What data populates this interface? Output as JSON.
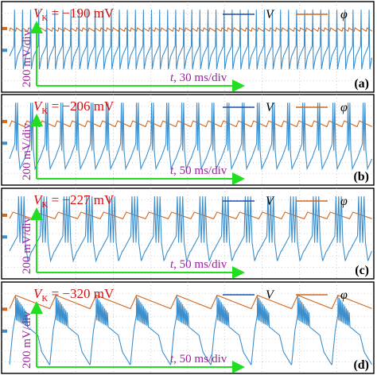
{
  "chart_data": [
    {
      "type": "line",
      "panel_label": "(a)",
      "vk_symbol": "V",
      "vk_subscript": "K",
      "vk_value": " = −190 mV",
      "x_annotation": "t, 30 ms/div",
      "y_annotation": "200 mV/div",
      "legend": [
        "V",
        "φ"
      ],
      "series": [
        {
          "name": "V",
          "color": "#3d8fcc",
          "pattern": "regular spiking",
          "spike_count": 45
        },
        {
          "name": "φ",
          "color": "#d2691e",
          "pattern": "small ripple near top"
        }
      ]
    },
    {
      "type": "line",
      "panel_label": "(b)",
      "vk_symbol": "V",
      "vk_subscript": "K",
      "vk_value": " = −206 mV",
      "x_annotation": "t, 50 ms/div",
      "y_annotation": "200 mV/div",
      "legend": [
        "V",
        "φ"
      ],
      "series": [
        {
          "name": "V",
          "color": "#3d8fcc",
          "pattern": "doublet bursting",
          "burst_count": 24
        },
        {
          "name": "φ",
          "color": "#d2691e",
          "pattern": "sawtooth ripple"
        }
      ]
    },
    {
      "type": "line",
      "panel_label": "(c)",
      "vk_symbol": "V",
      "vk_subscript": "K",
      "vk_value": " = −227 mV",
      "x_annotation": "t, 50 ms/div",
      "y_annotation": "200 mV/div",
      "legend": [
        "V",
        "φ"
      ],
      "series": [
        {
          "name": "V",
          "color": "#3d8fcc",
          "pattern": "triplet bursting",
          "burst_count": 16
        },
        {
          "name": "φ",
          "color": "#d2691e",
          "pattern": "sawtooth ripple"
        }
      ]
    },
    {
      "type": "line",
      "panel_label": "(d)",
      "vk_symbol": "V",
      "vk_subscript": "K",
      "vk_value": " = −320 mV",
      "x_annotation": "t, 50 ms/div",
      "y_annotation": "200 mV/div",
      "legend": [
        "V",
        "φ"
      ],
      "series": [
        {
          "name": "V",
          "color": "#3d8fcc",
          "pattern": "square-wave bursting",
          "burst_count": 9
        },
        {
          "name": "φ",
          "color": "#d2691e",
          "pattern": "large sawtooth"
        }
      ]
    }
  ],
  "colors": {
    "v_trace": "#3d8fcc",
    "phi_trace": "#d2691e",
    "legend_v": "#1f4fa8",
    "vk_text": "#d01010",
    "annotation_text": "#a020a0",
    "arrow": "#22dd22",
    "grid": "#b0b0b0",
    "border": "#000000"
  }
}
